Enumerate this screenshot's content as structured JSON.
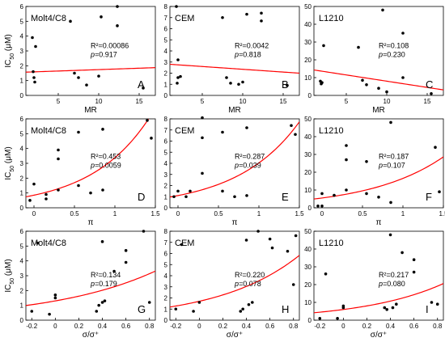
{
  "chart_data": [
    {
      "type": "scatter",
      "panel_label": "A",
      "cell_line": "Molt4/C8",
      "row": 0,
      "col": 0,
      "xlabel": "MR",
      "ylabel": "IC50 (μM)",
      "xlim": [
        1,
        17
      ],
      "ylim": [
        0,
        6
      ],
      "xticks": [
        5,
        10,
        15
      ],
      "yticks": [
        0,
        1,
        2,
        3,
        4,
        5,
        6
      ],
      "points": [
        [
          1.8,
          3.9
        ],
        [
          1.9,
          1.6
        ],
        [
          2.0,
          1.2
        ],
        [
          2.1,
          0.9
        ],
        [
          2.2,
          3.3
        ],
        [
          6.5,
          5.0
        ],
        [
          7.5,
          1.2
        ],
        [
          7.0,
          1.5
        ],
        [
          8.5,
          0.7
        ],
        [
          10.0,
          1.3
        ],
        [
          10.3,
          5.3
        ],
        [
          12.3,
          6.0
        ],
        [
          12.3,
          4.7
        ],
        [
          15.5,
          0.5
        ]
      ],
      "fit": {
        "kind": "linear",
        "a": 1.55,
        "b": 0.019
      },
      "r2_text": "0.00086",
      "p_text": "0.917"
    },
    {
      "type": "scatter",
      "panel_label": "B",
      "cell_line": "CEM",
      "row": 0,
      "col": 1,
      "xlabel": "MR",
      "ylabel": "",
      "xlim": [
        1,
        17
      ],
      "ylim": [
        0,
        8
      ],
      "xticks": [
        5,
        10,
        15
      ],
      "yticks": [
        0,
        1,
        2,
        3,
        4,
        5,
        6,
        7,
        8
      ],
      "points": [
        [
          1.8,
          8.0
        ],
        [
          2.0,
          3.2
        ],
        [
          2.0,
          1.6
        ],
        [
          1.9,
          1.1
        ],
        [
          2.3,
          1.7
        ],
        [
          7.5,
          7.0
        ],
        [
          8.0,
          1.6
        ],
        [
          9.5,
          1.0
        ],
        [
          10.0,
          1.2
        ],
        [
          10.5,
          7.3
        ],
        [
          12.3,
          7.4
        ],
        [
          12.3,
          6.7
        ],
        [
          15.5,
          0.9
        ],
        [
          8.5,
          1.1
        ]
      ],
      "fit": {
        "kind": "linear",
        "a": 2.85,
        "b": -0.05
      },
      "r2_text": "0.0042",
      "p_text": "0.818"
    },
    {
      "type": "scatter",
      "panel_label": "C",
      "cell_line": "L1210",
      "row": 0,
      "col": 2,
      "xlabel": "MR",
      "ylabel": "",
      "xlim": [
        1,
        17
      ],
      "ylim": [
        0,
        50
      ],
      "xticks": [
        5,
        10,
        15
      ],
      "yticks": [
        0,
        10,
        20,
        30,
        40,
        50
      ],
      "points": [
        [
          1.8,
          8.0
        ],
        [
          1.9,
          6.5
        ],
        [
          2.0,
          7.2
        ],
        [
          2.2,
          28.0
        ],
        [
          6.5,
          27.0
        ],
        [
          7.0,
          8.5
        ],
        [
          7.5,
          6.0
        ],
        [
          9.5,
          48.0
        ],
        [
          10.0,
          2.0
        ],
        [
          12.0,
          35.0
        ],
        [
          12.0,
          10.0
        ],
        [
          15.5,
          1.0
        ],
        [
          9.0,
          4.0
        ]
      ],
      "fit": {
        "kind": "linear",
        "a": 15.0,
        "b": -0.7
      },
      "r2_text": "0.108",
      "p_text": "0.230"
    },
    {
      "type": "scatter",
      "panel_label": "D",
      "cell_line": "Molt4/C8",
      "row": 1,
      "col": 0,
      "xlabel": "π",
      "ylabel": "IC50 (μM)",
      "xlim": [
        -0.1,
        1.5
      ],
      "ylim": [
        0,
        6
      ],
      "xticks": [
        0,
        0.5,
        1.0,
        1.5
      ],
      "yticks": [
        0,
        1,
        2,
        3,
        4,
        5,
        6
      ],
      "points": [
        [
          -0.05,
          0.5
        ],
        [
          0.0,
          1.6
        ],
        [
          0.15,
          0.6
        ],
        [
          0.15,
          0.9
        ],
        [
          0.3,
          3.9
        ],
        [
          0.3,
          3.3
        ],
        [
          0.3,
          1.2
        ],
        [
          0.55,
          5.1
        ],
        [
          0.55,
          1.5
        ],
        [
          0.7,
          1.0
        ],
        [
          0.85,
          5.3
        ],
        [
          0.85,
          1.2
        ],
        [
          1.4,
          5.9
        ],
        [
          1.45,
          4.7
        ]
      ],
      "fit": {
        "kind": "exp",
        "a": 0.85,
        "b": 1.38
      },
      "r2_text": "0.453",
      "p_text": "0.0059"
    },
    {
      "type": "scatter",
      "panel_label": "E",
      "cell_line": "CEM",
      "row": 1,
      "col": 1,
      "xlabel": "π",
      "ylabel": "",
      "xlim": [
        -0.1,
        1.5
      ],
      "ylim": [
        0,
        8
      ],
      "xticks": [
        0,
        0.5,
        1.0,
        1.5
      ],
      "yticks": [
        0,
        1,
        2,
        3,
        4,
        5,
        6,
        7,
        8
      ],
      "points": [
        [
          -0.05,
          1.0
        ],
        [
          0.0,
          1.5
        ],
        [
          0.1,
          1.0
        ],
        [
          0.15,
          1.5
        ],
        [
          0.3,
          8.1
        ],
        [
          0.3,
          3.1
        ],
        [
          0.3,
          6.3
        ],
        [
          0.55,
          6.8
        ],
        [
          0.55,
          1.5
        ],
        [
          0.7,
          1.0
        ],
        [
          0.85,
          7.2
        ],
        [
          0.85,
          1.1
        ],
        [
          1.4,
          7.4
        ],
        [
          1.45,
          6.6
        ]
      ],
      "fit": {
        "kind": "exp",
        "a": 1.1,
        "b": 1.3
      },
      "r2_text": "0.287",
      "p_text": "0.039"
    },
    {
      "type": "scatter",
      "panel_label": "F",
      "cell_line": "L1210",
      "row": 1,
      "col": 2,
      "xlabel": "π",
      "ylabel": "",
      "xlim": [
        -0.1,
        1.5
      ],
      "ylim": [
        0,
        50
      ],
      "xticks": [
        0,
        0.5,
        1.0,
        1.5
      ],
      "yticks": [
        0,
        10,
        20,
        30,
        40,
        50
      ],
      "points": [
        [
          -0.05,
          1.0
        ],
        [
          0.0,
          1.0
        ],
        [
          0.0,
          8.0
        ],
        [
          0.15,
          7.0
        ],
        [
          0.3,
          35.0
        ],
        [
          0.3,
          10.0
        ],
        [
          0.3,
          27.0
        ],
        [
          0.55,
          26.0
        ],
        [
          0.55,
          8.0
        ],
        [
          0.7,
          6.0
        ],
        [
          0.85,
          48.0
        ],
        [
          0.85,
          3.0
        ],
        [
          1.4,
          34.0
        ],
        [
          1.45,
          9.0
        ]
      ],
      "fit": {
        "kind": "exp",
        "a": 5.5,
        "b": 1.1
      },
      "r2_text": "0.187",
      "p_text": "0.107"
    },
    {
      "type": "scatter",
      "panel_label": "G",
      "cell_line": "Molt4/C8",
      "row": 2,
      "col": 0,
      "xlabel": "σ/σ⁺",
      "ylabel": "IC50 (μM)",
      "xlim": [
        -0.25,
        0.85
      ],
      "ylim": [
        0,
        6
      ],
      "xticks": [
        -0.2,
        0,
        0.2,
        0.4,
        0.6,
        0.8
      ],
      "yticks": [
        0,
        1,
        2,
        3,
        4,
        5,
        6
      ],
      "points": [
        [
          -0.2,
          0.6
        ],
        [
          -0.15,
          5.2
        ],
        [
          -0.05,
          0.4
        ],
        [
          0.0,
          1.7
        ],
        [
          0.0,
          1.5
        ],
        [
          0.35,
          0.6
        ],
        [
          0.37,
          1.0
        ],
        [
          0.4,
          5.3
        ],
        [
          0.4,
          1.2
        ],
        [
          0.42,
          1.3
        ],
        [
          0.5,
          3.3
        ],
        [
          0.6,
          4.7
        ],
        [
          0.6,
          3.9
        ],
        [
          0.75,
          6.0
        ],
        [
          0.8,
          1.2
        ]
      ],
      "fit": {
        "kind": "exp",
        "a": 1.3,
        "b": 1.1
      },
      "r2_text": "0.134",
      "p_text": "0.179"
    },
    {
      "type": "scatter",
      "panel_label": "H",
      "cell_line": "CEM",
      "row": 2,
      "col": 1,
      "xlabel": "σ/σ⁺",
      "ylabel": "",
      "xlim": [
        -0.25,
        0.85
      ],
      "ylim": [
        0,
        8
      ],
      "xticks": [
        -0.2,
        0,
        0.2,
        0.4,
        0.6,
        0.8
      ],
      "yticks": [
        0,
        1,
        2,
        3,
        4,
        5,
        6,
        7,
        8
      ],
      "points": [
        [
          -0.2,
          1.0
        ],
        [
          -0.15,
          6.8
        ],
        [
          -0.05,
          0.8
        ],
        [
          0.0,
          1.6
        ],
        [
          0.35,
          0.8
        ],
        [
          0.37,
          1.0
        ],
        [
          0.4,
          7.2
        ],
        [
          0.42,
          1.4
        ],
        [
          0.45,
          1.6
        ],
        [
          0.5,
          8.0
        ],
        [
          0.6,
          7.3
        ],
        [
          0.62,
          6.5
        ],
        [
          0.75,
          6.2
        ],
        [
          0.8,
          3.2
        ],
        [
          0.82,
          7.6
        ]
      ],
      "fit": {
        "kind": "exp",
        "a": 1.7,
        "b": 1.45
      },
      "r2_text": "0.220",
      "p_text": "0.078"
    },
    {
      "type": "scatter",
      "panel_label": "I",
      "cell_line": "L1210",
      "row": 2,
      "col": 2,
      "xlabel": "σ/σ⁺",
      "ylabel": "",
      "xlim": [
        -0.25,
        0.85
      ],
      "ylim": [
        0,
        50
      ],
      "xticks": [
        -0.2,
        0,
        0.2,
        0.4,
        0.6,
        0.8
      ],
      "yticks": [
        0,
        10,
        20,
        30,
        40,
        50
      ],
      "points": [
        [
          -0.2,
          1.0
        ],
        [
          -0.15,
          26.0
        ],
        [
          -0.05,
          1.0
        ],
        [
          0.0,
          8.0
        ],
        [
          0.0,
          7.0
        ],
        [
          0.35,
          7.0
        ],
        [
          0.37,
          6.0
        ],
        [
          0.4,
          48.0
        ],
        [
          0.42,
          7.0
        ],
        [
          0.45,
          9.0
        ],
        [
          0.5,
          38.0
        ],
        [
          0.6,
          34.0
        ],
        [
          0.6,
          27.0
        ],
        [
          0.75,
          10.0
        ],
        [
          0.8,
          9.0
        ]
      ],
      "fit": {
        "kind": "exp",
        "a": 6.0,
        "b": 1.45
      },
      "r2_text": "0.217",
      "p_text": "0.080"
    }
  ],
  "colors": {
    "fit_line": "#ff0000",
    "points": "#000000",
    "frame": "#000000"
  },
  "labels": {
    "r2_prefix": "R²=",
    "p_prefix": "p=",
    "ylabel_main": "IC",
    "ylabel_sub": "50",
    "ylabel_unit": " (μM)"
  }
}
